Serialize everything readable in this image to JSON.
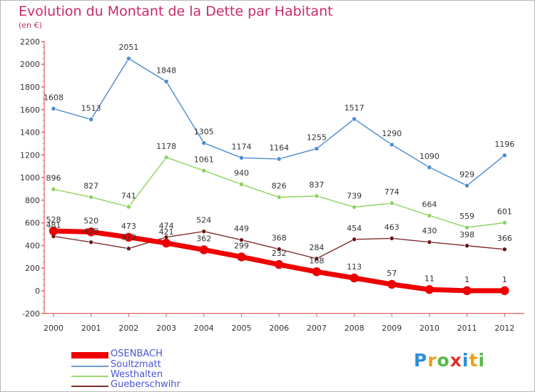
{
  "header": {
    "title": "Evolution du Montant de la Dette par Habitant",
    "subtitle": "(en €)"
  },
  "legend": [
    {
      "label": "OSENBACH",
      "color": "#ee0000"
    },
    {
      "label": "Soultzmatt",
      "color": "#6a9ed1"
    },
    {
      "label": "Westhalten",
      "color": "#9bd96a"
    },
    {
      "label": "Gueberschwihr",
      "color": "#7e2f2f"
    }
  ],
  "logo": {
    "letters": [
      "P",
      "r",
      "o",
      "x",
      "i",
      "t",
      "i"
    ]
  },
  "chart_data": {
    "type": "line",
    "x": [
      "2000",
      "2001",
      "2002",
      "2003",
      "2004",
      "2005",
      "2006",
      "2007",
      "2008",
      "2009",
      "2010",
      "2011",
      "2012"
    ],
    "ylim": [
      -200,
      2200
    ],
    "yticks": [
      "-200",
      "0",
      "200",
      "400",
      "600",
      "800",
      "1000",
      "1200",
      "1400",
      "1600",
      "1800",
      "2000",
      "2200"
    ],
    "grid": false,
    "legend_position": "bottom-left",
    "series": [
      {
        "name": "Soultzmatt",
        "color": "#4a8ad0",
        "marker": "#4a8ad0",
        "values": [
          1608,
          1513,
          2051,
          1848,
          1305,
          1174,
          1164,
          1255,
          1517,
          1290,
          1090,
          929,
          1196
        ],
        "labels": [
          "1608",
          "1513",
          "2051",
          "1848",
          "1305",
          "1174",
          "1164",
          "1255",
          "1517",
          "1290",
          "1090",
          "929",
          "1196"
        ]
      },
      {
        "name": "Westhalten",
        "color": "#8cd25b",
        "marker": "#8cd25b",
        "values": [
          896,
          827,
          741,
          1178,
          1061,
          940,
          826,
          837,
          739,
          774,
          664,
          559,
          601
        ],
        "labels": [
          "896",
          "827",
          "741",
          "1178",
          "1061",
          "940",
          "826",
          "837",
          "739",
          "774",
          "664",
          "559",
          "601"
        ]
      },
      {
        "name": "Gueberschwihr",
        "color": "#7e2f2f",
        "marker": "#6b1515",
        "values": [
          481,
          429,
          373,
          474,
          524,
          449,
          368,
          284,
          454,
          463,
          430,
          398,
          366
        ],
        "labels": [
          "481",
          "429",
          "373",
          "474",
          "524",
          "449",
          "368",
          "284",
          "454",
          "463",
          "430",
          "398",
          "366"
        ]
      },
      {
        "name": "OSENBACH",
        "color": "#ee0000",
        "marker": "#ee0000",
        "values": [
          528,
          520,
          473,
          421,
          362,
          299,
          232,
          168,
          113,
          57,
          11,
          1,
          1
        ],
        "labels": [
          "528",
          "520",
          "473",
          "421",
          "362",
          "299",
          "232",
          "168",
          "113",
          "57",
          "11",
          "1",
          "1"
        ]
      }
    ]
  }
}
